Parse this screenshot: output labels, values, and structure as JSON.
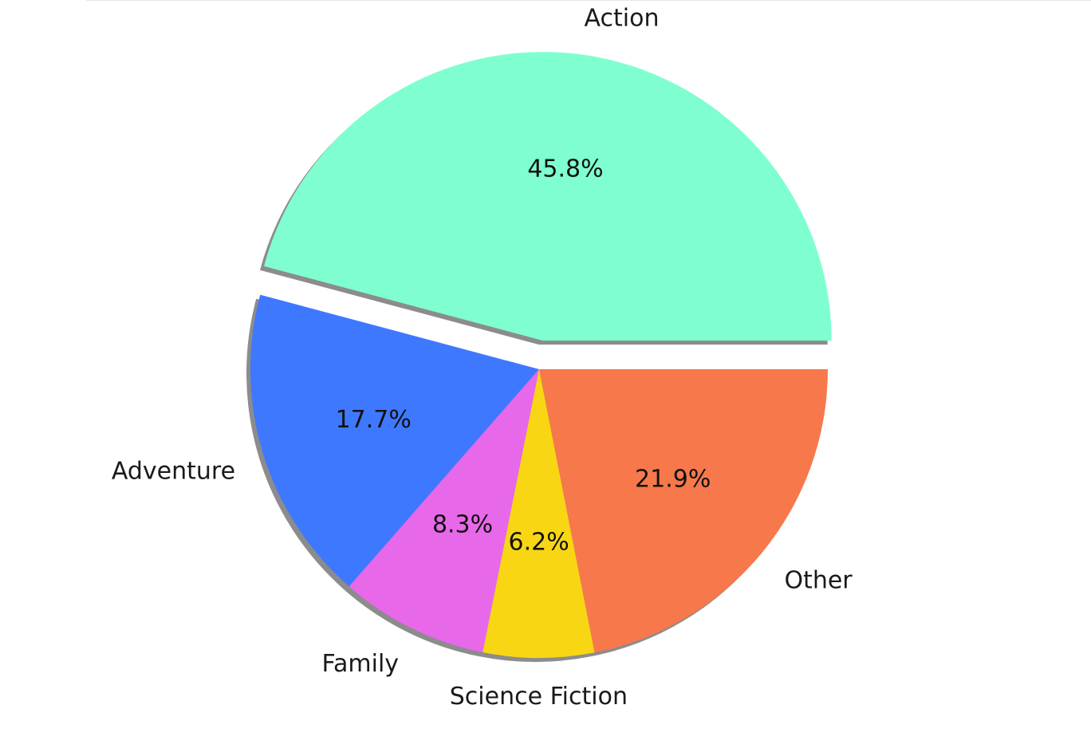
{
  "chart_data": {
    "type": "pie",
    "title": "",
    "slices": [
      {
        "label": "Action",
        "percent": 45.8,
        "percent_label": "45.8%",
        "color": "#7fffd0",
        "exploded": true
      },
      {
        "label": "Adventure",
        "percent": 17.7,
        "percent_label": "17.7%",
        "color": "#3e78ff",
        "exploded": false
      },
      {
        "label": "Family",
        "percent": 8.3,
        "percent_label": "8.3%",
        "color": "#e868ea",
        "exploded": false
      },
      {
        "label": "Science Fiction",
        "percent": 6.2,
        "percent_label": "6.2%",
        "color": "#f8d614",
        "exploded": false
      },
      {
        "label": "Other",
        "percent": 21.9,
        "percent_label": "21.9%",
        "color": "#f7784b",
        "exploded": false
      }
    ],
    "start_angle_deg": 0,
    "direction": "counterclockwise",
    "shadow": true
  }
}
